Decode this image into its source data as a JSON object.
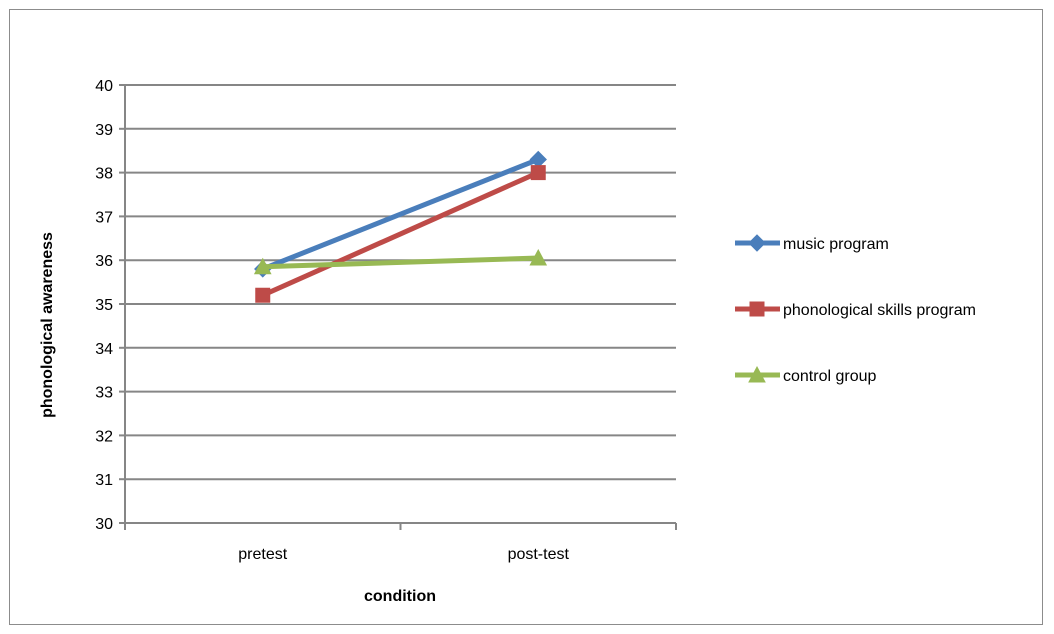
{
  "chart_data": {
    "type": "line",
    "title": "",
    "xlabel": "condition",
    "ylabel": "phonological awareness",
    "categories": [
      "pretest",
      "post-test"
    ],
    "ylim": [
      30,
      40
    ],
    "yticks": [
      30,
      31,
      32,
      33,
      34,
      35,
      36,
      37,
      38,
      39,
      40
    ],
    "grid": true,
    "legend_position": "right",
    "series": [
      {
        "name": "music program",
        "values": [
          35.8,
          38.3
        ],
        "color": "#4a7ebb",
        "marker": "diamond"
      },
      {
        "name": "phonological skills program",
        "values": [
          35.2,
          38.0
        ],
        "color": "#be4b48",
        "marker": "square"
      },
      {
        "name": "control group",
        "values": [
          35.85,
          36.05
        ],
        "color": "#98b954",
        "marker": "triangle"
      }
    ]
  }
}
